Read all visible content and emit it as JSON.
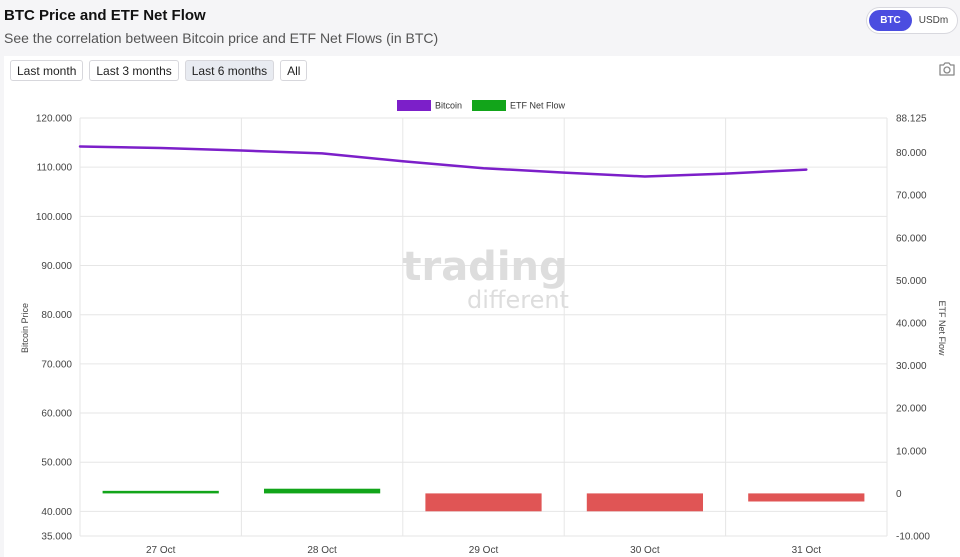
{
  "header": {
    "title": "BTC Price and ETF Net Flow",
    "subtitle": "See the correlation between Bitcoin price and ETF Net Flows (in BTC)"
  },
  "unit_toggle": {
    "options": [
      "BTC",
      "USDm"
    ],
    "selected": "BTC"
  },
  "range_buttons": [
    "Last month",
    "Last 3 months",
    "Last 6 months",
    "All"
  ],
  "active_range": "Last 6 months",
  "icons": {
    "snapshot": "camera-icon"
  },
  "watermark": {
    "line1": "trading",
    "line2": "different"
  },
  "colors": {
    "bitcoin": "#7c1fc9",
    "inflow": "#12a51a",
    "outflow": "#e05555",
    "accent": "#4b4de0"
  },
  "chart_data": {
    "type": "line+bar",
    "categories": [
      "27 Oct",
      "28 Oct",
      "29 Oct",
      "30 Oct",
      "31 Oct"
    ],
    "series": [
      {
        "name": "Bitcoin",
        "type": "line",
        "axis": "left",
        "x": [
          26.5,
          27.0,
          27.5,
          28.0,
          28.5,
          29.0,
          29.5,
          30.0,
          30.5,
          31.0
        ],
        "values": [
          114200,
          113900,
          113400,
          112800,
          111200,
          109800,
          108900,
          108100,
          108700,
          109500
        ]
      },
      {
        "name": "ETF Net Flow",
        "type": "bar",
        "axis": "right",
        "values": [
          600,
          1100,
          -4200,
          -4200,
          -1900
        ]
      }
    ],
    "left_axis": {
      "label": "Bitcoin Price",
      "range": [
        35000,
        120000
      ],
      "ticks": [
        "120.000",
        "110.000",
        "100.000",
        "90.000",
        "80.000",
        "70.000",
        "60.000",
        "50.000",
        "40.000",
        "35.000"
      ]
    },
    "right_axis": {
      "label": "ETF Net Flow",
      "range": [
        -10000,
        88125
      ],
      "ticks": [
        "88.125",
        "80.000",
        "70.000",
        "60.000",
        "50.000",
        "40.000",
        "30.000",
        "20.000",
        "10.000",
        "0",
        "-10.000"
      ]
    },
    "legend_placement": "top-center",
    "grid": true
  }
}
